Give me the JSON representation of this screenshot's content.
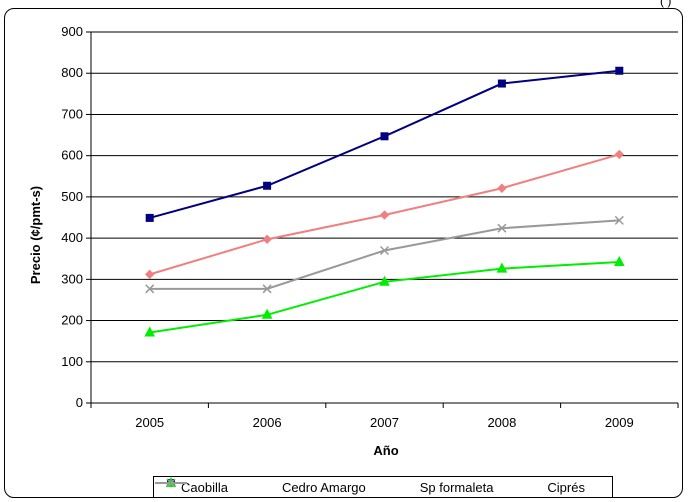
{
  "corner_mark": "( )",
  "chart_data": {
    "type": "line",
    "categories": [
      "2005",
      "2006",
      "2007",
      "2008",
      "2009"
    ],
    "xlabel": "Año",
    "ylabel": "Precio (¢/pmt-s)",
    "ylim": [
      0,
      900
    ],
    "yticks": [
      0,
      100,
      200,
      300,
      400,
      500,
      600,
      700,
      800,
      900
    ],
    "grid": true,
    "legend_position": "bottom",
    "series": [
      {
        "name": "Caobilla",
        "values": [
          312,
          397,
          456,
          521,
          603
        ],
        "color": "#f08080",
        "marker": "diamond"
      },
      {
        "name": "Cedro Amargo",
        "values": [
          449,
          527,
          647,
          775,
          806
        ],
        "color": "#000080",
        "marker": "square"
      },
      {
        "name": "Sp formaleta",
        "values": [
          171,
          214,
          294,
          326,
          342
        ],
        "color": "#00ee00",
        "marker": "triangle"
      },
      {
        "name": "Ciprés",
        "values": [
          277,
          277,
          370,
          424,
          443
        ],
        "color": "#999999",
        "marker": "x"
      }
    ]
  }
}
